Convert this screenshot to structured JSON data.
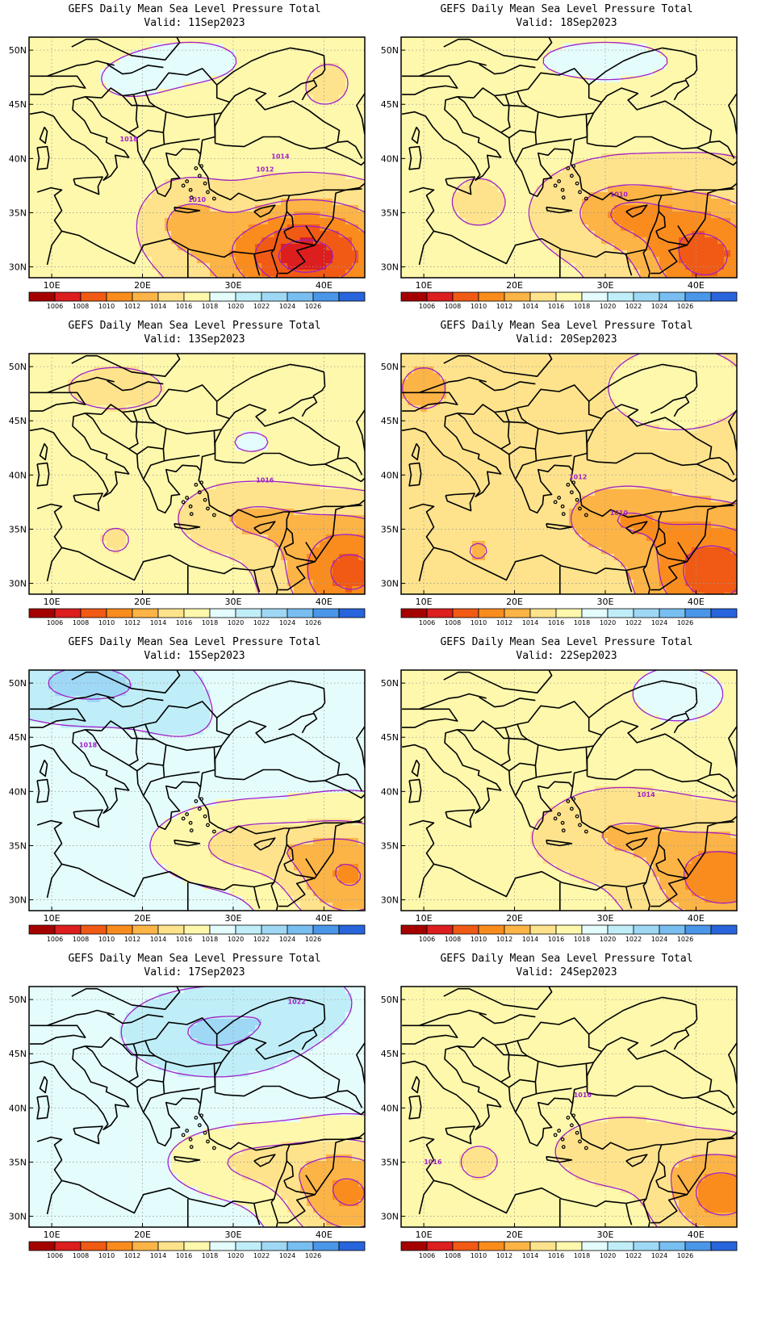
{
  "title_text": "GEFS Daily Mean Sea Level Pressure Total",
  "valid_prefix": "Valid:",
  "lon_ticks": [
    "10E",
    "20E",
    "30E",
    "40E"
  ],
  "lat_ticks": [
    "50N",
    "45N",
    "40N",
    "35N",
    "30N"
  ],
  "colorbar": {
    "labels": [
      "1006",
      "1008",
      "1010",
      "1012",
      "1014",
      "1016",
      "1018",
      "1020",
      "1022",
      "1024",
      "1026"
    ],
    "colors": [
      "#a50000",
      "#dc1e1e",
      "#f05a14",
      "#fa8c1e",
      "#fcb446",
      "#fee38c",
      "#fef8ac",
      "#e4fcfc",
      "#c0eef8",
      "#9ed8f5",
      "#78bef0",
      "#4a96e8",
      "#2864dc"
    ]
  },
  "panels": [
    {
      "valid": "11Sep2023",
      "labels": [
        {
          "t": "1018",
          "lon": 18.5,
          "lat": 41.6
        },
        {
          "t": "1014",
          "lon": 35.2,
          "lat": 40.0
        },
        {
          "t": "1012",
          "lon": 33.5,
          "lat": 38.8
        },
        {
          "t": "1010",
          "lon": 26.0,
          "lat": 36.0
        }
      ]
    },
    {
      "valid": "18Sep2023",
      "labels": [
        {
          "t": "1010",
          "lon": 31.5,
          "lat": 36.5
        }
      ]
    },
    {
      "valid": "13Sep2023",
      "labels": [
        {
          "t": "1016",
          "lon": 33.5,
          "lat": 39.3
        }
      ]
    },
    {
      "valid": "20Sep2023",
      "labels": [
        {
          "t": "1012",
          "lon": 27.0,
          "lat": 39.6
        },
        {
          "t": "1010",
          "lon": 31.5,
          "lat": 36.3
        }
      ]
    },
    {
      "valid": "15Sep2023",
      "labels": [
        {
          "t": "1018",
          "lon": 14.0,
          "lat": 44.1
        }
      ]
    },
    {
      "valid": "22Sep2023",
      "labels": [
        {
          "t": "1014",
          "lon": 34.5,
          "lat": 39.5
        }
      ]
    },
    {
      "valid": "17Sep2023",
      "labels": [
        {
          "t": "1022",
          "lon": 37.0,
          "lat": 49.6
        }
      ]
    },
    {
      "valid": "24Sep2023",
      "labels": [
        {
          "t": "1016",
          "lon": 27.5,
          "lat": 41.0
        },
        {
          "t": "1016",
          "lon": 11.0,
          "lat": 34.8
        }
      ]
    }
  ]
}
